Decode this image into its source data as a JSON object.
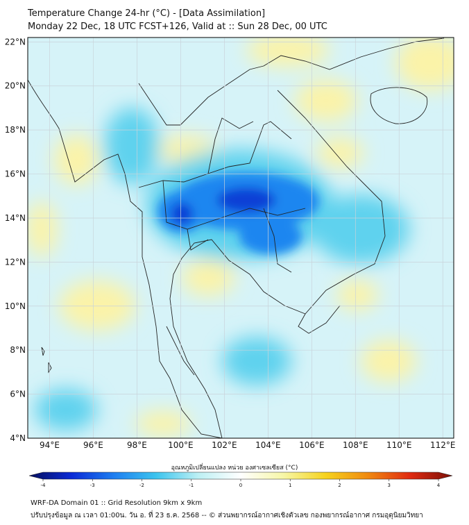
{
  "title": {
    "line1": "Temperature Change 24-hr (°C) - [Data Assimilation]",
    "line2": "Monday 22 Dec, 18 UTC FCST+126, Valid at :: Sun 28 Dec, 00 UTC"
  },
  "map": {
    "lon_range": [
      93,
      112.5
    ],
    "lat_range": [
      4,
      22.2
    ],
    "lat_ticks": [
      {
        "value": 22,
        "label": "22°N"
      },
      {
        "value": 20,
        "label": "20°N"
      },
      {
        "value": 18,
        "label": "18°N"
      },
      {
        "value": 16,
        "label": "16°N"
      },
      {
        "value": 14,
        "label": "14°N"
      },
      {
        "value": 12,
        "label": "12°N"
      },
      {
        "value": 10,
        "label": "10°N"
      },
      {
        "value": 8,
        "label": "8°N"
      },
      {
        "value": 6,
        "label": "6°N"
      },
      {
        "value": 4,
        "label": "4°N"
      }
    ],
    "lon_ticks": [
      {
        "value": 94,
        "label": "94°E"
      },
      {
        "value": 96,
        "label": "96°E"
      },
      {
        "value": 98,
        "label": "98°E"
      },
      {
        "value": 100,
        "label": "100°E"
      },
      {
        "value": 102,
        "label": "102°E"
      },
      {
        "value": 104,
        "label": "104°E"
      },
      {
        "value": 106,
        "label": "106°E"
      },
      {
        "value": 108,
        "label": "108°E"
      },
      {
        "value": 110,
        "label": "110°E"
      },
      {
        "value": 112,
        "label": "112°E"
      }
    ],
    "grid": true
  },
  "colorbar": {
    "title": "อุณหภูมิเปลี่ยนแปลง หน่วย องศาเซลเซียส (°C)",
    "range": [
      -4,
      4
    ],
    "tick_labels": [
      {
        "value": -4,
        "label": "-4"
      },
      {
        "value": -3,
        "label": "-3"
      },
      {
        "value": -2,
        "label": "-2"
      },
      {
        "value": -1,
        "label": "-1"
      },
      {
        "value": 0,
        "label": "0"
      },
      {
        "value": 1,
        "label": "1"
      },
      {
        "value": 2,
        "label": "2"
      },
      {
        "value": 3,
        "label": "3"
      },
      {
        "value": 4,
        "label": "4"
      }
    ],
    "colors": [
      "#08105e",
      "#0a2ad6",
      "#1e7ef0",
      "#3cc4ee",
      "#bdf0f4",
      "#ffffff",
      "#f7f7a8",
      "#f6d31e",
      "#f08a10",
      "#e02a10",
      "#7a1008"
    ]
  },
  "field_colors": {
    "neutral": "#d6f3f8",
    "cool": "#5fd2ee",
    "cold": "#1e86f0",
    "coldest": "#0b3fd6",
    "warm": "#fbf3a8",
    "warmer": "#f8e26a"
  },
  "footer": {
    "line1": "WRF-DA Domain 01 :: Grid Resolution 9km x 9km",
    "line2": "ปรับปรุงข้อมูล ณ เวลา 01:00น. วัน อ. ที่ 23 ธ.ค. 2568 -- © ส่วนพยากรณ์อากาศเชิงตัวเลข กองพยากรณ์อากาศ กรมอุตุนิยมวิทยา"
  }
}
